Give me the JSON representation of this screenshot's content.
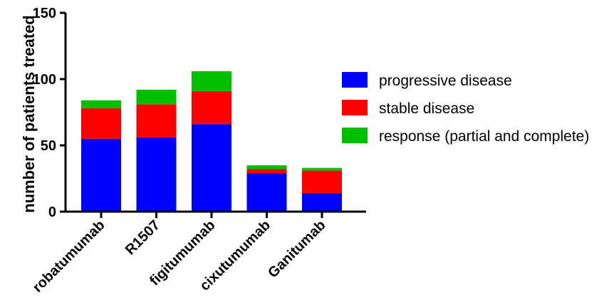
{
  "chart_data": {
    "type": "bar",
    "stacked": true,
    "categories": [
      "robatumumab",
      "R1507",
      "figitumumab",
      "cixutumumab",
      "Ganitumab"
    ],
    "series": [
      {
        "name": "progressive disease",
        "color": "#0000ff",
        "values": [
          55,
          56,
          66,
          29,
          14
        ]
      },
      {
        "name": "stable disease",
        "color": "#ff0000",
        "values": [
          23,
          25,
          25,
          3,
          17
        ]
      },
      {
        "name": "response (partial and complete)",
        "color": "#00c000",
        "values": [
          6,
          11,
          15,
          3,
          2
        ]
      }
    ],
    "ylabel": "number of patients treated",
    "ylim": [
      0,
      150
    ],
    "yticks": [
      "0",
      "50",
      "100",
      "150"
    ],
    "grid": false,
    "legend_position": "right"
  }
}
